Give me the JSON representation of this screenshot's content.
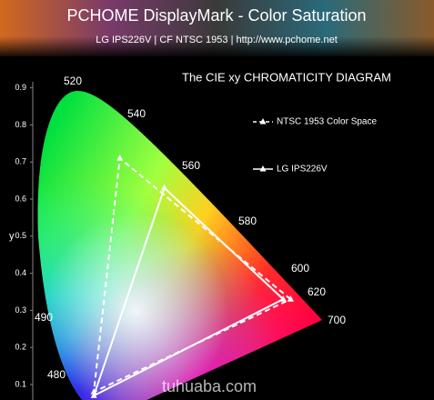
{
  "header": {
    "title": "PCHOME DisplayMark - Color Saturation",
    "subtitle": "LG IPS226V | CF NTSC 1953 | http://www.pchome.net"
  },
  "chart_data": {
    "type": "line",
    "title": "The CIE xy  CHROMATICITY  DIAGRAM",
    "ylabel": "y",
    "ylim": [
      0.1,
      0.9
    ],
    "yticks": [
      0.1,
      0.2,
      0.3,
      0.4,
      0.5,
      0.6,
      0.7,
      0.8,
      0.9
    ],
    "xlim": [
      0,
      0.8
    ],
    "wavelength_labels": [
      "520",
      "540",
      "560",
      "580",
      "600",
      "620",
      "700",
      "490",
      "480"
    ],
    "series": [
      {
        "name": "NTSC 1953 Color Space",
        "color": "#ffffff",
        "style": "dashed",
        "x": [
          0.67,
          0.21,
          0.14,
          0.67
        ],
        "values": [
          0.33,
          0.71,
          0.08,
          0.33
        ]
      },
      {
        "name": "LG IPS226V",
        "color": "#ffffff",
        "style": "solid",
        "x": [
          0.65,
          0.33,
          0.14,
          0.65
        ],
        "values": [
          0.33,
          0.63,
          0.07,
          0.33
        ]
      }
    ]
  },
  "watermark": "tuhuaba.com"
}
